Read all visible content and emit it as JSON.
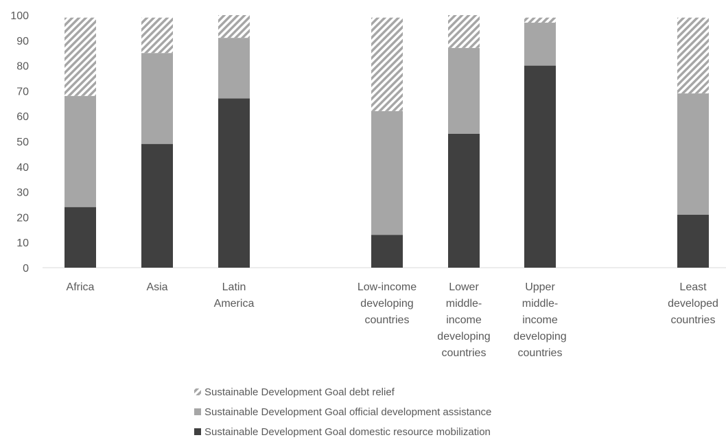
{
  "chart_data": {
    "type": "bar",
    "stacked": true,
    "title": "",
    "xlabel": "",
    "ylabel": "",
    "ylim": [
      0,
      100
    ],
    "yticks": [
      0,
      10,
      20,
      30,
      40,
      50,
      60,
      70,
      80,
      90,
      100
    ],
    "grid": false,
    "legend_position": "bottom",
    "categories": [
      "Africa",
      "Asia",
      "Latin America",
      "Low-income developing countries",
      "Lower middle-income developing countries",
      "Upper middle-income developing countries",
      "Least developed countries"
    ],
    "category_lines": [
      [
        "Africa"
      ],
      [
        "Asia"
      ],
      [
        "Latin",
        "America"
      ],
      [
        "Low-income",
        "developing",
        "countries"
      ],
      [
        "Lower",
        "middle-",
        "income",
        "developing",
        "countries"
      ],
      [
        "Upper",
        "middle-",
        "income",
        "developing",
        "countries"
      ],
      [
        "Least",
        "developed",
        "countries"
      ]
    ],
    "series": [
      {
        "name": "Sustainable Development Goal domestic resource mobilization",
        "color": "#404040",
        "pattern": "solid",
        "values": [
          24,
          49,
          67,
          13,
          53,
          80,
          21
        ]
      },
      {
        "name": "Sustainable Development Goal official development assistance",
        "color": "#a6a6a6",
        "pattern": "solid",
        "values": [
          44,
          36,
          24,
          49,
          34,
          17,
          48
        ]
      },
      {
        "name": "Sustainable Development Goal debt relief",
        "color": "#a6a6a6",
        "pattern": "diagonal-stripes",
        "values": [
          31,
          14,
          9,
          37,
          13,
          2,
          30
        ]
      }
    ],
    "legend_order": [
      2,
      1,
      0
    ]
  }
}
